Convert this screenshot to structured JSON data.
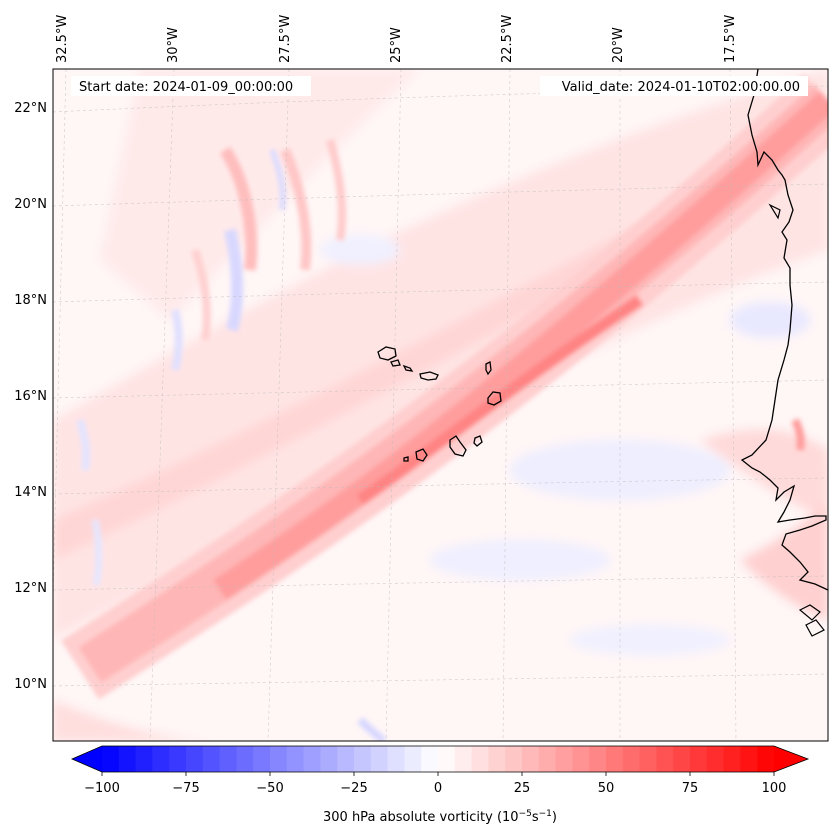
{
  "map": {
    "start_date": "Start date: 2024-01-09_00:00:00",
    "valid_date": "Valid_date: 2024-01-10T02:00:00.00",
    "lon_labels": [
      "32.5°W",
      "30°W",
      "27.5°W",
      "25°W",
      "22.5°W",
      "20°W",
      "17.5°W"
    ],
    "lat_labels": [
      "22°N",
      "20°N",
      "18°N",
      "16°N",
      "14°N",
      "12°N",
      "10°N"
    ],
    "islands": [
      "Santo Antão",
      "São Vicente",
      "São Nicolau",
      "Sal",
      "Boa Vista",
      "Maio",
      "Santiago",
      "Fogo",
      "Brava"
    ],
    "coastline": "West Africa (Mauritania, Senegal, Gambia, Guinea-Bissau)"
  },
  "colorbar": {
    "label_main": "300 hPa absolute vorticity (10",
    "label_exp1": "−5",
    "label_mid": "s",
    "label_exp2": "−1",
    "label_end": ")",
    "ticks": [
      "−100",
      "−75",
      "−50",
      "−25",
      "0",
      "25",
      "50",
      "75",
      "100"
    ],
    "range": [
      -100,
      100
    ],
    "levels": 40,
    "colors": {
      "min": "#0000ff",
      "mid": "#ffffff",
      "max": "#ff0000"
    }
  }
}
